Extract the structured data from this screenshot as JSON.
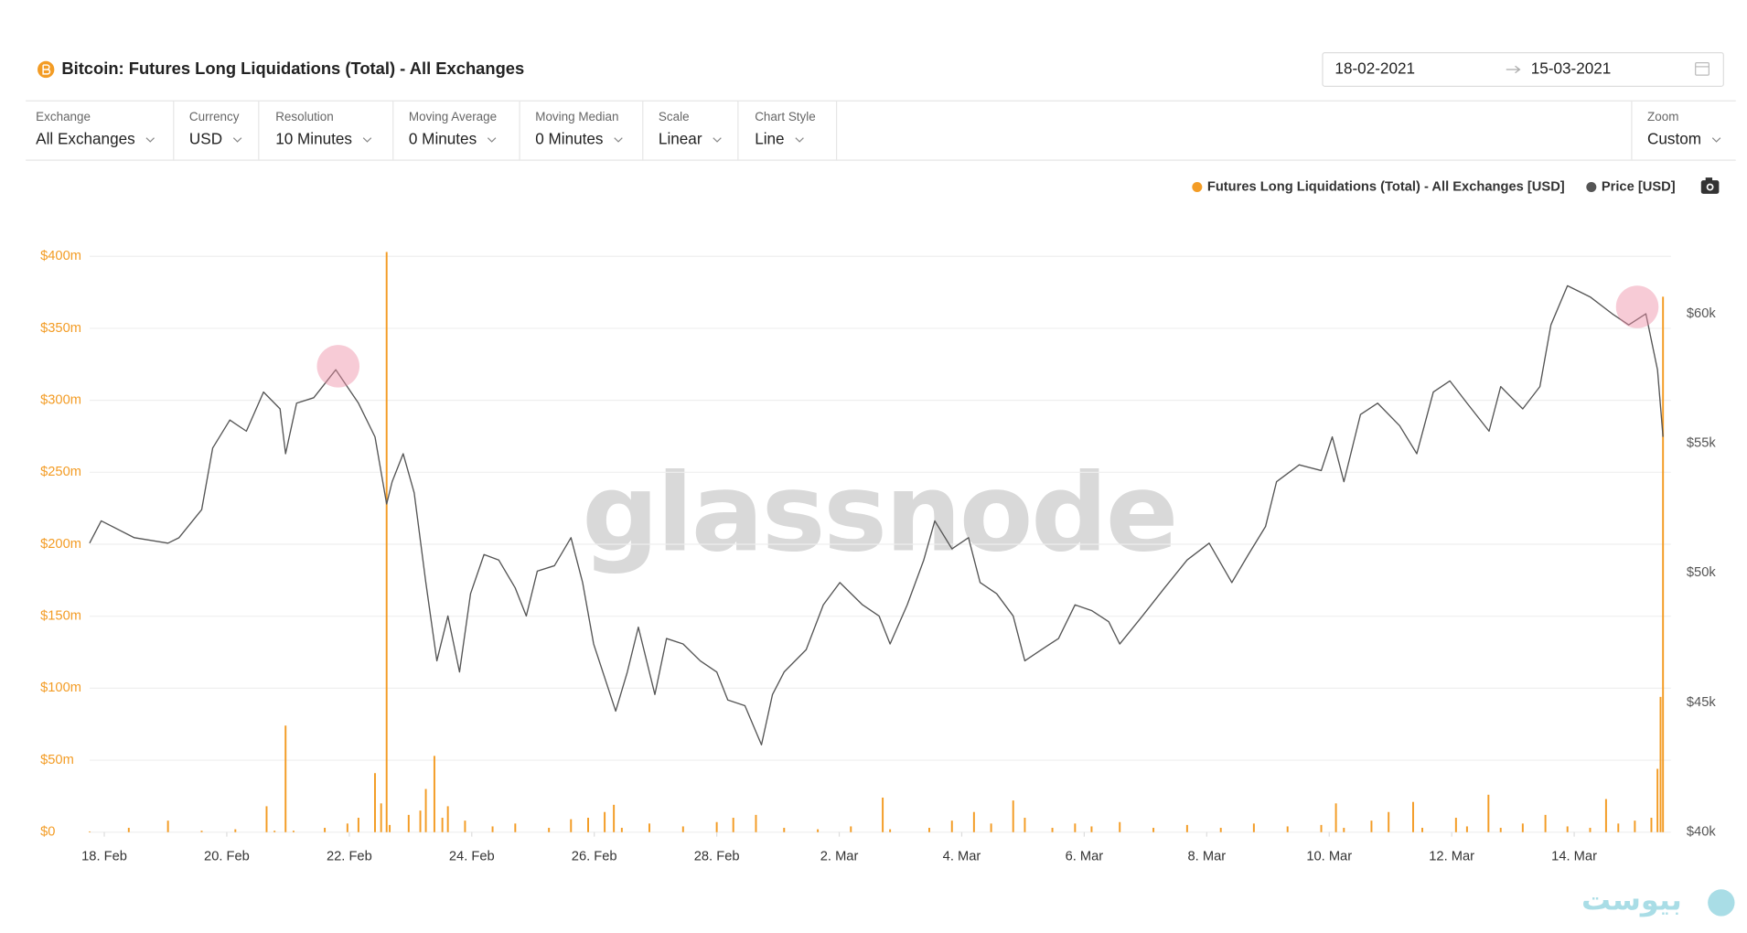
{
  "header": {
    "date_start": "18-02-2021",
    "date_end": "15-03-2021"
  },
  "controls": [
    {
      "label": "Exchange",
      "value": "All Exchanges"
    },
    {
      "label": "Currency",
      "value": "USD"
    },
    {
      "label": "Resolution",
      "value": "10 Minutes"
    },
    {
      "label": "Moving Average",
      "value": "0 Minutes"
    },
    {
      "label": "Moving Median",
      "value": "0 Minutes"
    },
    {
      "label": "Scale",
      "value": "Linear"
    },
    {
      "label": "Chart Style",
      "value": "Line"
    },
    {
      "label": "Zoom",
      "value": "Custom"
    }
  ],
  "site_logo": "بیوست",
  "chart_data": {
    "type": "combo",
    "title": "Bitcoin: Futures Long Liquidations (Total) - All Exchanges",
    "watermark": "glassnode",
    "grid": true,
    "xlim": [
      -0.24,
      25.45
    ],
    "xticks": [
      {
        "value": 0,
        "label": "18. Feb"
      },
      {
        "value": 2,
        "label": "20. Feb"
      },
      {
        "value": 4,
        "label": "22. Feb"
      },
      {
        "value": 6,
        "label": "24. Feb"
      },
      {
        "value": 8,
        "label": "26. Feb"
      },
      {
        "value": 10,
        "label": "28. Feb"
      },
      {
        "value": 12,
        "label": "2. Mar"
      },
      {
        "value": 14,
        "label": "4. Mar"
      },
      {
        "value": 16,
        "label": "6. Mar"
      },
      {
        "value": 18,
        "label": "8. Mar"
      },
      {
        "value": 20,
        "label": "10. Mar"
      },
      {
        "value": 22,
        "label": "12. Mar"
      },
      {
        "value": 24,
        "label": "14. Mar"
      }
    ],
    "ylim": [
      0,
      410
    ],
    "yticks": [
      {
        "value": 0,
        "label": "$0"
      },
      {
        "value": 50,
        "label": "$50m"
      },
      {
        "value": 100,
        "label": "$100m"
      },
      {
        "value": 150,
        "label": "$150m"
      },
      {
        "value": 200,
        "label": "$200m"
      },
      {
        "value": 250,
        "label": "$250m"
      },
      {
        "value": 300,
        "label": "$300m"
      },
      {
        "value": 350,
        "label": "$350m"
      },
      {
        "value": 400,
        "label": "$400m"
      }
    ],
    "y2lim": [
      40000,
      62770
    ],
    "y2ticks": [
      {
        "value": 40000,
        "label": "$40k"
      },
      {
        "value": 45000,
        "label": "$45k"
      },
      {
        "value": 50000,
        "label": "$50k"
      },
      {
        "value": 55000,
        "label": "$55k"
      },
      {
        "value": 60000,
        "label": "$60k"
      }
    ],
    "series": [
      {
        "name": "Futures Long Liquidations (Total) - All Exchanges [USD]",
        "type": "bar",
        "color": "#f39c25",
        "x": [
          -0.24,
          0.4,
          1.04,
          1.59,
          2.14,
          2.65,
          2.78,
          2.96,
          3.09,
          3.6,
          3.97,
          4.15,
          4.42,
          4.52,
          4.61,
          4.66,
          4.97,
          5.16,
          5.25,
          5.39,
          5.52,
          5.61,
          5.89,
          6.34,
          6.71,
          7.26,
          7.62,
          7.9,
          8.17,
          8.32,
          8.45,
          8.9,
          9.45,
          10.0,
          10.27,
          10.64,
          11.1,
          11.65,
          12.19,
          12.71,
          12.83,
          13.47,
          13.84,
          14.2,
          14.48,
          14.84,
          15.03,
          15.48,
          15.85,
          16.12,
          16.58,
          17.13,
          17.68,
          18.23,
          18.77,
          19.32,
          19.87,
          20.11,
          20.24,
          20.69,
          20.97,
          21.37,
          21.52,
          22.07,
          22.25,
          22.6,
          22.8,
          23.16,
          23.53,
          23.89,
          24.26,
          24.52,
          24.72,
          24.99,
          25.26,
          25.36,
          25.41,
          25.45
        ],
        "values": [
          0.5,
          3,
          8,
          1,
          2,
          18,
          1,
          74,
          1,
          3,
          6,
          10,
          41,
          20,
          403,
          5,
          12,
          15,
          30,
          53,
          10,
          18,
          8,
          4,
          6,
          3,
          9,
          10,
          14,
          19,
          3,
          6,
          4,
          7,
          10,
          12,
          3,
          2,
          4,
          24,
          2,
          3,
          8,
          14,
          6,
          22,
          10,
          3,
          6,
          4,
          7,
          3,
          5,
          3,
          6,
          4,
          5,
          20,
          3,
          8,
          14,
          21,
          3,
          10,
          4,
          26,
          3,
          6,
          12,
          4,
          3,
          23,
          6,
          8,
          10,
          44,
          94,
          372
        ]
      },
      {
        "name": "Price [USD]",
        "type": "line",
        "axis": "y2",
        "color": "#555555",
        "x": [
          -0.24,
          -0.05,
          0.49,
          1.04,
          1.22,
          1.59,
          1.77,
          2.05,
          2.32,
          2.6,
          2.87,
          2.96,
          3.14,
          3.42,
          3.78,
          4.15,
          4.42,
          4.61,
          4.7,
          4.88,
          5.06,
          5.25,
          5.43,
          5.61,
          5.8,
          5.98,
          6.2,
          6.44,
          6.71,
          6.89,
          7.07,
          7.35,
          7.62,
          7.81,
          7.99,
          8.35,
          8.54,
          8.72,
          8.99,
          9.18,
          9.45,
          9.73,
          10.0,
          10.18,
          10.46,
          10.73,
          10.91,
          11.1,
          11.46,
          11.74,
          12.01,
          12.38,
          12.65,
          12.83,
          13.11,
          13.38,
          13.56,
          13.84,
          14.11,
          14.3,
          14.57,
          14.84,
          15.03,
          15.3,
          15.58,
          15.85,
          16.12,
          16.4,
          16.58,
          16.95,
          17.31,
          17.68,
          18.04,
          18.41,
          18.68,
          18.96,
          19.14,
          19.51,
          19.87,
          20.05,
          20.24,
          20.51,
          20.79,
          21.15,
          21.43,
          21.7,
          21.97,
          22.25,
          22.61,
          22.8,
          23.16,
          23.44,
          23.62,
          23.89,
          24.26,
          24.62,
          24.89,
          25.17,
          25.36,
          25.45
        ],
        "values": [
          51150,
          52010,
          51360,
          51150,
          51360,
          52440,
          54820,
          55900,
          55470,
          56980,
          56330,
          54600,
          56550,
          56760,
          57840,
          56550,
          55250,
          52660,
          53520,
          54600,
          53090,
          49630,
          46610,
          48340,
          46180,
          49200,
          50710,
          50500,
          49420,
          48340,
          50070,
          50280,
          51360,
          49630,
          47260,
          44670,
          46180,
          47910,
          45310,
          47470,
          47260,
          46610,
          46180,
          45100,
          44880,
          43370,
          45310,
          46180,
          47040,
          48770,
          49630,
          48770,
          48340,
          47260,
          48770,
          50500,
          52010,
          50930,
          51360,
          49630,
          49200,
          48340,
          46610,
          47040,
          47470,
          48770,
          48550,
          48120,
          47260,
          48340,
          49420,
          50500,
          51150,
          49630,
          50710,
          51790,
          53520,
          54170,
          53950,
          55250,
          53520,
          56110,
          56550,
          55680,
          54600,
          56980,
          57410,
          56550,
          55470,
          57190,
          56330,
          57190,
          59570,
          61080,
          60650,
          60000,
          59570,
          60000,
          57840,
          55250
        ]
      }
    ]
  }
}
